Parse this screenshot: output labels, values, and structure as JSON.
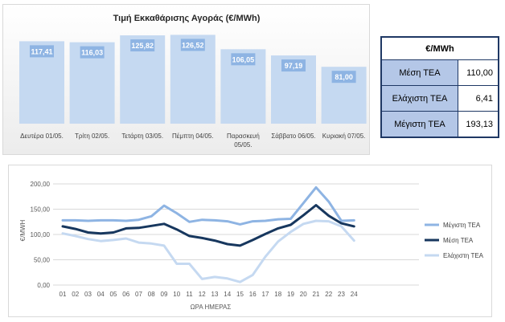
{
  "bar_chart": {
    "type": "bar",
    "title": "Τιμή Εκκαθάρισης Αγοράς (€/MWh)",
    "categories": [
      "Δευτέρα 01/05.",
      "Τρίτη 02/05.",
      "Τετάρτη 03/05.",
      "Πέμπτη 04/05.",
      "Παρασκευή 05/05.",
      "Σάββατο 06/05.",
      "Κυριακή 07/05."
    ],
    "values": [
      117.41,
      116.03,
      125.82,
      126.52,
      106.05,
      97.19,
      81.0
    ],
    "value_labels": [
      "117,41",
      "116,03",
      "125,82",
      "126,52",
      "106,05",
      "97,19",
      "81,00"
    ],
    "colors": {
      "bar": "#c5d9f1",
      "label_bg": "#8eb4e3",
      "label_text": "#ffffff"
    }
  },
  "table": {
    "header": "€/MWh",
    "rows": [
      {
        "label": "Μέση ΤΕΑ",
        "value": "110,00"
      },
      {
        "label": "Ελάχιστη ΤΕΑ",
        "value": "6,41"
      },
      {
        "label": "Μέγιστη ΤΕΑ",
        "value": "193,13"
      }
    ]
  },
  "chart_data": {
    "type": "line",
    "xlabel": "ΩΡΑ ΗΜΕΡΑΣ",
    "ylabel": "€/MWH",
    "x": [
      "01",
      "02",
      "03",
      "04",
      "05",
      "06",
      "07",
      "08",
      "09",
      "10",
      "11",
      "12",
      "13",
      "14",
      "15",
      "16",
      "17",
      "18",
      "19",
      "20",
      "21",
      "22",
      "23",
      "24"
    ],
    "ylim": [
      0,
      200
    ],
    "yticks": [
      "0,00",
      "50,00",
      "100,00",
      "150,00",
      "200,00"
    ],
    "grid": true,
    "legend": "right",
    "series": [
      {
        "name": "Μέγιστη ΤΕΑ",
        "color": "#8eb4e3",
        "values": [
          128,
          128,
          127,
          128,
          128,
          127,
          129,
          136,
          157,
          142,
          125,
          129,
          128,
          126,
          120,
          126,
          127,
          130,
          131,
          162,
          193,
          165,
          127,
          128
        ]
      },
      {
        "name": "Μέση ΤΕΑ",
        "color": "#17375e",
        "values": [
          116,
          111,
          104,
          102,
          104,
          112,
          113,
          117,
          121,
          110,
          97,
          93,
          88,
          81,
          78,
          89,
          101,
          112,
          119,
          138,
          158,
          137,
          122,
          116
        ]
      },
      {
        "name": "Ελάχιστη ΤΕΑ",
        "color": "#c5d9f1",
        "values": [
          102,
          97,
          91,
          87,
          89,
          92,
          84,
          82,
          78,
          42,
          42,
          12,
          16,
          13,
          6,
          20,
          56,
          86,
          105,
          121,
          127,
          126,
          116,
          88
        ]
      }
    ]
  }
}
